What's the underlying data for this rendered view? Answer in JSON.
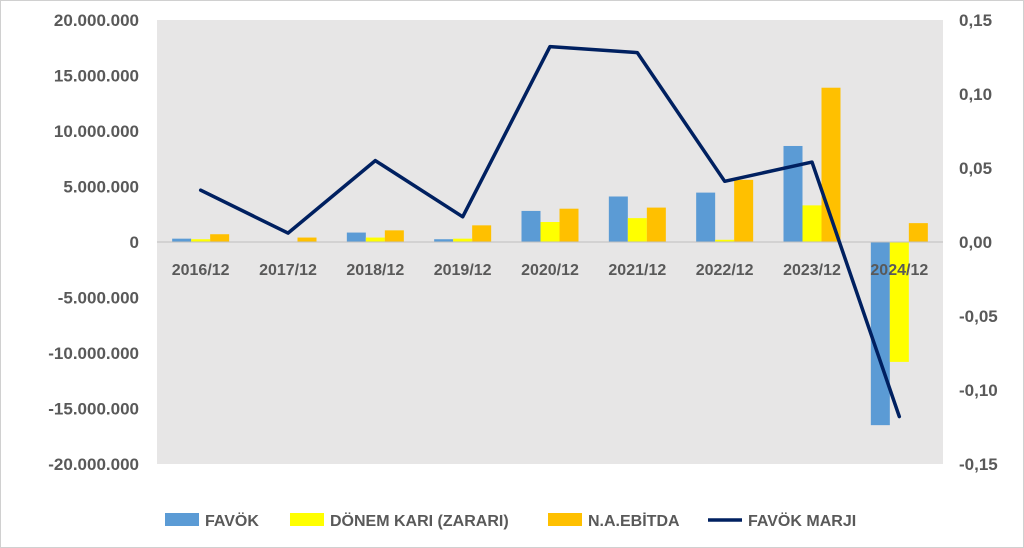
{
  "chart_data": {
    "type": "bar",
    "categories": [
      "2016/12",
      "2017/12",
      "2018/12",
      "2019/12",
      "2020/12",
      "2021/12",
      "2022/12",
      "2023/12",
      "2024/12"
    ],
    "series": [
      {
        "name": "FAVÖK",
        "type": "bar",
        "axis": "left",
        "color": "#5B9BD5",
        "values": [
          300000,
          0,
          850000,
          250000,
          2800000,
          4100000,
          4450000,
          8650000,
          -16500000
        ]
      },
      {
        "name": "DÖNEM KARI (ZARARI)",
        "type": "bar",
        "axis": "left",
        "color": "#FFFF00",
        "values": [
          250000,
          0,
          400000,
          300000,
          1800000,
          2150000,
          200000,
          3300000,
          -10800000
        ]
      },
      {
        "name": "N.A.EBİTDA",
        "type": "bar",
        "axis": "left",
        "color": "#FFC000",
        "values": [
          700000,
          400000,
          1050000,
          1500000,
          3000000,
          3100000,
          5600000,
          13900000,
          1700000
        ]
      },
      {
        "name": "FAVÖK MARJI",
        "type": "line",
        "axis": "right",
        "color": "#002060",
        "values": [
          0.035,
          0.006,
          0.055,
          0.017,
          0.132,
          0.128,
          0.041,
          0.054,
          -0.118
        ]
      }
    ],
    "y_left": {
      "ylim": [
        -20000000,
        20000000
      ],
      "ticks": [
        20000000,
        15000000,
        10000000,
        5000000,
        0,
        -5000000,
        -10000000,
        -15000000,
        -20000000
      ],
      "tick_labels": [
        "20.000.000",
        "15.000.000",
        "10.000.000",
        "5.000.000",
        "0",
        "-5.000.000",
        "-10.000.000",
        "-15.000.000",
        "-20.000.000"
      ]
    },
    "y_right": {
      "ylim": [
        -0.15,
        0.15
      ],
      "ticks": [
        0.15,
        0.1,
        0.05,
        0.0,
        -0.05,
        -0.1,
        -0.15
      ],
      "tick_labels": [
        "0,15",
        "0,10",
        "0,05",
        "0,00",
        "-0,05",
        "-0,10",
        "-0,15"
      ]
    },
    "grid": false,
    "plot_background": "#E7E6E6",
    "legend_position": "bottom",
    "title": "",
    "xlabel": "",
    "ylabel": ""
  }
}
